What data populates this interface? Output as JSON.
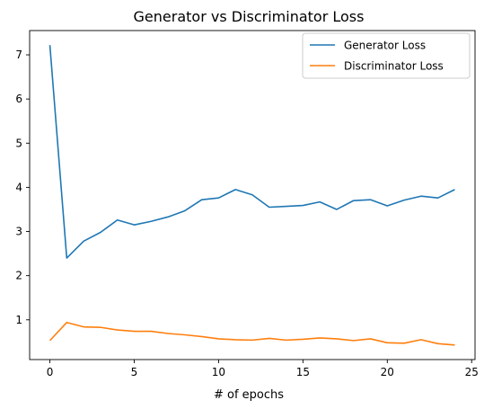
{
  "chart_data": {
    "type": "line",
    "title": "Generator vs Discriminator Loss",
    "xlabel": "# of epochs",
    "ylabel": "",
    "xlim": [
      -1.2,
      25.2
    ],
    "ylim": [
      0.1,
      7.55
    ],
    "x_ticks": [
      0,
      5,
      10,
      15,
      20,
      25
    ],
    "y_ticks": [
      1,
      2,
      3,
      4,
      5,
      6,
      7
    ],
    "grid": false,
    "legend_position": "top-right",
    "x": [
      0,
      1,
      2,
      3,
      4,
      5,
      6,
      7,
      8,
      9,
      10,
      11,
      12,
      13,
      14,
      15,
      16,
      17,
      18,
      19,
      20,
      21,
      22,
      23,
      24
    ],
    "series": [
      {
        "name": "Generator Loss",
        "color": "#1f77b4",
        "values": [
          7.22,
          2.4,
          2.78,
          2.98,
          3.26,
          3.15,
          3.23,
          3.33,
          3.47,
          3.72,
          3.76,
          3.95,
          3.83,
          3.55,
          3.57,
          3.59,
          3.67,
          3.5,
          3.7,
          3.72,
          3.58,
          3.71,
          3.8,
          3.76,
          3.95
        ]
      },
      {
        "name": "Discriminator Loss",
        "color": "#ff7f0e",
        "values": [
          0.53,
          0.94,
          0.84,
          0.83,
          0.77,
          0.74,
          0.74,
          0.69,
          0.66,
          0.62,
          0.57,
          0.55,
          0.54,
          0.58,
          0.54,
          0.56,
          0.59,
          0.57,
          0.53,
          0.57,
          0.48,
          0.47,
          0.55,
          0.46,
          0.43
        ]
      }
    ]
  }
}
